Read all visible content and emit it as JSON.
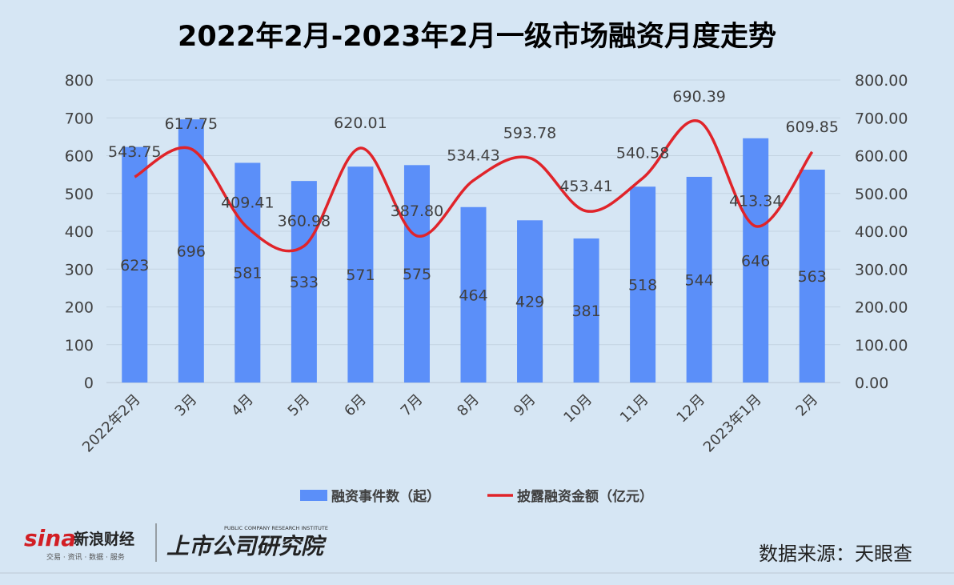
{
  "chart_data": {
    "type": "bar+line",
    "title": "2022年2月-2023年2月一级市场融资月度走势",
    "categories": [
      "2022年2月",
      "3月",
      "4月",
      "5月",
      "6月",
      "7月",
      "8月",
      "9月",
      "10月",
      "11月",
      "12月",
      "2023年1月",
      "2月"
    ],
    "series": [
      {
        "name": "融资事件数（起）",
        "type": "bar",
        "axis": "left",
        "color": "#5b8ff9",
        "values": [
          623,
          696,
          581,
          533,
          571,
          575,
          464,
          429,
          381,
          518,
          544,
          646,
          563
        ],
        "labels": [
          "623",
          "696",
          "581",
          "533",
          "571",
          "575",
          "464",
          "429",
          "381",
          "518",
          "544",
          "646",
          "563"
        ]
      },
      {
        "name": "披露融资金额（亿元）",
        "type": "line",
        "axis": "right",
        "color": "#e0242a",
        "values": [
          543.75,
          617.75,
          409.41,
          360.98,
          620.01,
          387.8,
          534.43,
          593.78,
          453.41,
          540.58,
          690.39,
          413.34,
          609.85
        ],
        "labels": [
          "543.75",
          "617.75",
          "409.41",
          "360.98",
          "620.01",
          "387.80",
          "534.43",
          "593.78",
          "453.41",
          "540.58",
          "690.39",
          "413.34",
          "609.85"
        ]
      }
    ],
    "ylim_left": [
      0,
      800
    ],
    "ylim_right": [
      0,
      800
    ],
    "yticks_left": [
      "0",
      "100",
      "200",
      "300",
      "400",
      "500",
      "600",
      "700",
      "800"
    ],
    "yticks_right": [
      "0.00",
      "100.00",
      "200.00",
      "300.00",
      "400.00",
      "500.00",
      "600.00",
      "700.00",
      "800.00"
    ],
    "grid": true,
    "legend_position": "bottom"
  },
  "source_label": "数据来源：天眼查",
  "logo": {
    "sina_text": "sina",
    "sina_cn": "新浪财经",
    "sina_sub": "交易 · 资讯 · 数据 · 服务",
    "institute_cn": "上市公司研究院",
    "institute_en": "PUBLIC COMPANY RESEARCH INSTITUTE"
  },
  "colors": {
    "background": "#d6e6f4",
    "bar": "#5b8ff9",
    "line": "#e0242a",
    "grid": "#c4d4e2",
    "text": "#404040"
  }
}
